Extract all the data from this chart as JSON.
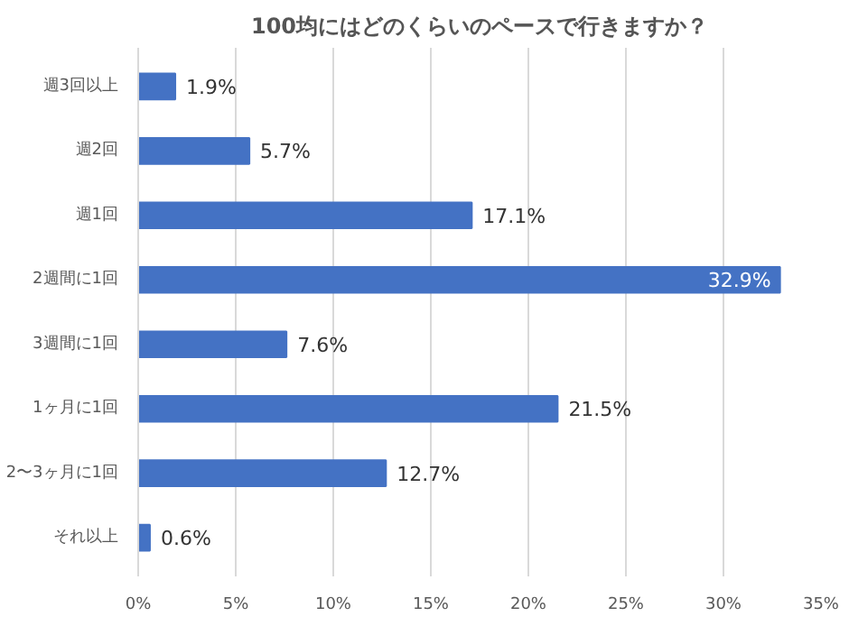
{
  "chart_data": {
    "type": "bar",
    "orientation": "horizontal",
    "title": "100均にはどのくらいのペースで行きますか？",
    "categories": [
      "週3回以上",
      "週2回",
      "週1回",
      "2週間に1回",
      "3週間に1回",
      "1ヶ月に1回",
      "2〜3ヶ月に1回",
      "それ以上"
    ],
    "values": [
      1.9,
      5.7,
      17.1,
      32.9,
      7.6,
      21.5,
      12.7,
      0.6
    ],
    "value_labels": [
      "1.9%",
      "5.7%",
      "17.1%",
      "32.9%",
      "7.6%",
      "21.5%",
      "12.7%",
      "0.6%"
    ],
    "color": "#4472c4",
    "xlim": [
      0,
      35
    ],
    "xticks": [
      {
        "value": 0,
        "label": "0%"
      },
      {
        "value": 5,
        "label": "5%"
      },
      {
        "value": 10,
        "label": "10%"
      },
      {
        "value": 15,
        "label": "15%"
      },
      {
        "value": 20,
        "label": "20%"
      },
      {
        "value": 25,
        "label": "25%"
      },
      {
        "value": 30,
        "label": "30%"
      },
      {
        "value": 35,
        "label": "35%"
      }
    ],
    "grid": "x"
  }
}
